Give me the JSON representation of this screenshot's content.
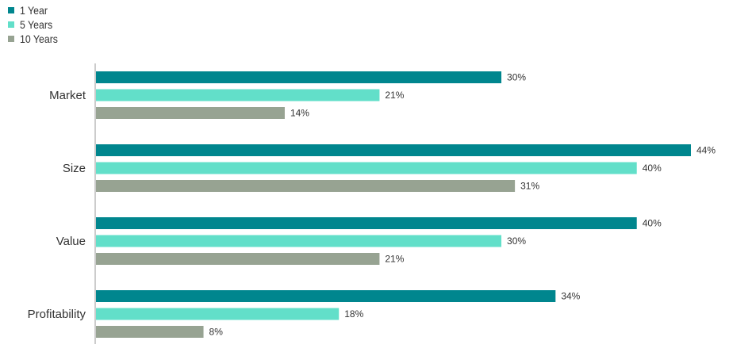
{
  "chart_data": {
    "type": "bar",
    "orientation": "horizontal",
    "categories": [
      "Market",
      "Size",
      "Value",
      "Profitability"
    ],
    "series": [
      {
        "name": "1 Year",
        "color": "#00868e",
        "values": [
          30,
          44,
          40,
          34
        ]
      },
      {
        "name": "5 Years",
        "color": "#62dfc9",
        "values": [
          21,
          40,
          30,
          18
        ]
      },
      {
        "name": "10 Years",
        "color": "#97a392",
        "values": [
          14,
          31,
          21,
          8
        ]
      }
    ],
    "value_suffix": "%",
    "title": "",
    "xlabel": "",
    "ylabel": "",
    "xlim": [
      0,
      44
    ],
    "grid": false,
    "legend_position": "top-left",
    "data_labels": true
  }
}
